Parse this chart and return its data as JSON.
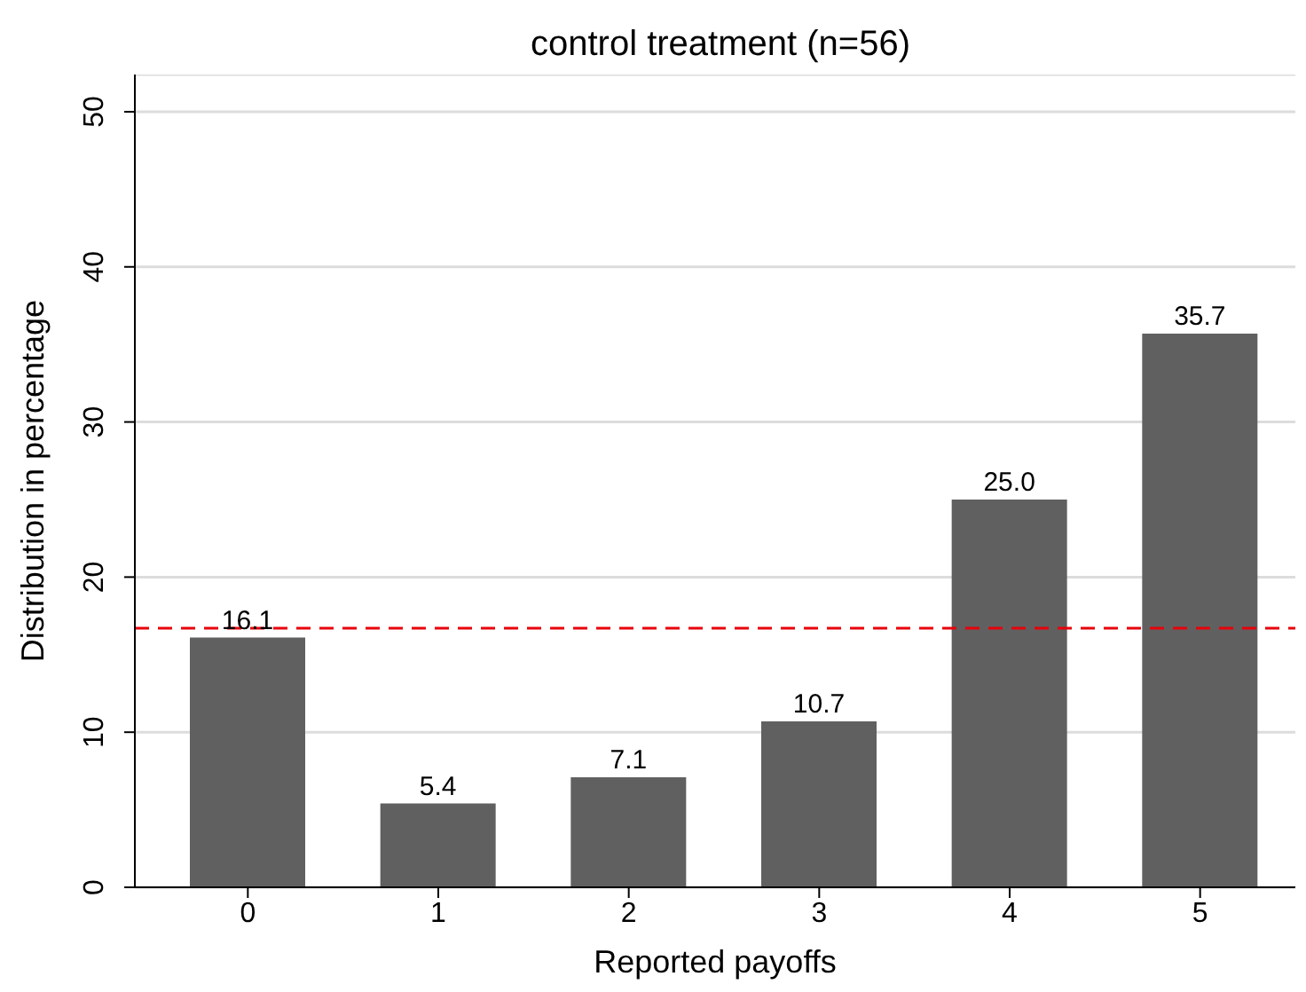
{
  "chart_data": {
    "type": "bar",
    "title": "control treatment (n=56)",
    "xlabel": "Reported payoffs",
    "ylabel": "Distribution in percentage",
    "categories": [
      "0",
      "1",
      "2",
      "3",
      "4",
      "5"
    ],
    "values": [
      16.1,
      5.4,
      7.1,
      10.7,
      25.0,
      35.7
    ],
    "value_labels": [
      "16.1",
      "5.4",
      "7.1",
      "10.7",
      "25.0",
      "35.7"
    ],
    "color": "#606060",
    "ylim": [
      0,
      52.4
    ],
    "yticks": [
      0,
      10,
      20,
      30,
      40,
      50
    ],
    "grid": "y",
    "ref_lines": [
      {
        "axis": "y",
        "value": 16.7,
        "color": "#e8000b",
        "line_style": "dashed"
      }
    ]
  }
}
